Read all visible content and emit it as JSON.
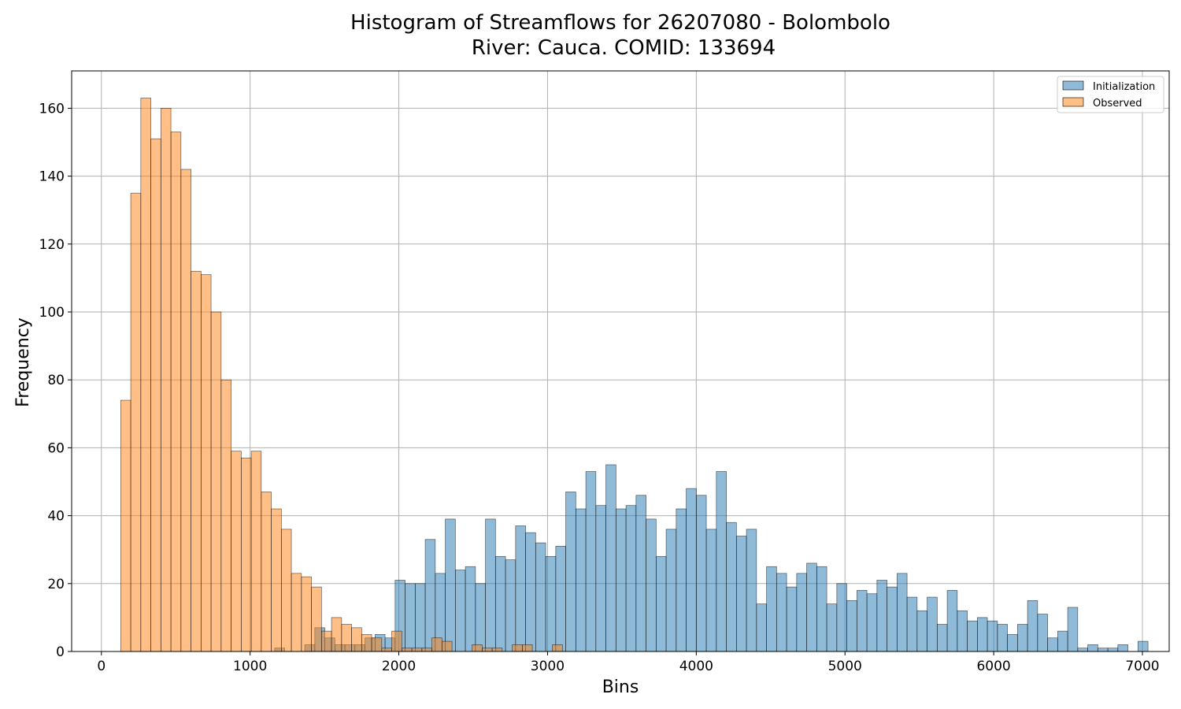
{
  "chart_data": {
    "type": "bar",
    "title_line1": "Histogram of Streamflows for 26207080 - Bolombolo",
    "title_line2": "River: Cauca. COMID: 133694",
    "xlabel": "Bins",
    "ylabel": "Frequency",
    "xlim": [
      -200,
      7180
    ],
    "ylim": [
      0,
      171
    ],
    "xticks": [
      0,
      1000,
      2000,
      3000,
      4000,
      5000,
      6000,
      7000
    ],
    "yticks": [
      0,
      20,
      40,
      60,
      80,
      100,
      120,
      140,
      160
    ],
    "grid": true,
    "legend_position": "top-right",
    "bin_width": 67.5,
    "series": [
      {
        "name": "Initialization",
        "color": "#1f77b4",
        "bin_start": 1165,
        "values": [
          1,
          0,
          0,
          2,
          7,
          4,
          2,
          2,
          2,
          4,
          5,
          4,
          21,
          20,
          20,
          33,
          23,
          39,
          24,
          25,
          20,
          39,
          28,
          27,
          37,
          35,
          32,
          28,
          31,
          47,
          42,
          53,
          43,
          55,
          42,
          43,
          46,
          39,
          28,
          36,
          42,
          48,
          46,
          36,
          53,
          38,
          34,
          36,
          14,
          25,
          23,
          19,
          23,
          26,
          25,
          14,
          20,
          15,
          18,
          17,
          21,
          19,
          23,
          16,
          12,
          16,
          8,
          18,
          12,
          9,
          10,
          9,
          8,
          5,
          8,
          15,
          11,
          4,
          6,
          13,
          1,
          2,
          1,
          1,
          2,
          0,
          3
        ]
      },
      {
        "name": "Observed",
        "color": "#ff7f0e",
        "bin_start": 130,
        "values": [
          74,
          135,
          163,
          151,
          160,
          153,
          142,
          112,
          111,
          100,
          80,
          59,
          57,
          59,
          47,
          42,
          36,
          23,
          22,
          19,
          6,
          10,
          8,
          7,
          5,
          4,
          1,
          6,
          1,
          1,
          1,
          4,
          3,
          0,
          0,
          2,
          1,
          1,
          0,
          2,
          2,
          0,
          0,
          2,
          0,
          0,
          0,
          0
        ]
      }
    ]
  }
}
